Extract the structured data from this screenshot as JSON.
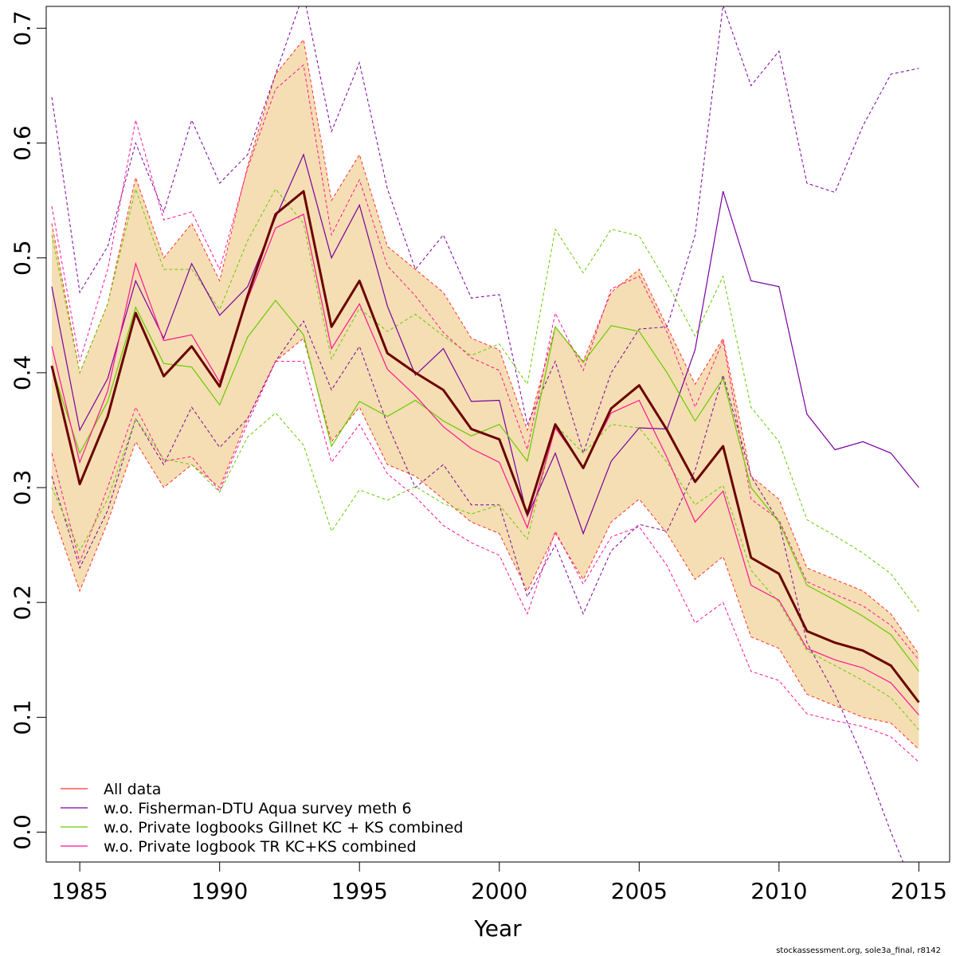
{
  "chart_data": {
    "type": "line",
    "title": "",
    "xlabel": "Year",
    "ylabel": "",
    "xlim": [
      1983.8,
      2016.1
    ],
    "ylim": [
      -0.026,
      0.719
    ],
    "x_ticks": [
      "1985",
      "1990",
      "1995",
      "2000",
      "2005",
      "2010",
      "2015"
    ],
    "y_ticks": [
      "0.0",
      "0.1",
      "0.2",
      "0.3",
      "0.4",
      "0.5",
      "0.6",
      "0.7"
    ],
    "legend_position": "bottom-left",
    "colors": {
      "band": "#f5deb3",
      "main": "#6b0000",
      "all_data": "#ff3030",
      "fisherman": "#7a00a0",
      "gillnet": "#66cc00",
      "tr": "#ff1493"
    },
    "legend": [
      {
        "label": "All data",
        "color": "#ff3030"
      },
      {
        "label": "w.o. Fisherman-DTU Aqua survey meth 6",
        "color": "#7a00a0"
      },
      {
        "label": "w.o. Private logbooks Gillnet KC + KS combined",
        "color": "#66cc00"
      },
      {
        "label": "w.o. Private logbook TR KC+KS combined",
        "color": "#ff1493"
      }
    ],
    "credit": "stockassessment.org, sole3a_final, r8142",
    "x": [
      1984,
      1985,
      1986,
      1987,
      1988,
      1989,
      1990,
      1991,
      1992,
      1993,
      1994,
      1995,
      1996,
      1997,
      1998,
      1999,
      2000,
      2001,
      2002,
      2003,
      2004,
      2005,
      2006,
      2007,
      2008,
      2009,
      2010,
      2011,
      2012,
      2013,
      2014,
      2015
    ],
    "band": {
      "upper": [
        0.53,
        0.4,
        0.46,
        0.57,
        0.5,
        0.53,
        0.48,
        0.58,
        0.66,
        0.69,
        0.55,
        0.59,
        0.51,
        0.49,
        0.47,
        0.43,
        0.42,
        0.35,
        0.44,
        0.41,
        0.47,
        0.49,
        0.44,
        0.39,
        0.43,
        0.31,
        0.29,
        0.23,
        0.22,
        0.21,
        0.19,
        0.155
      ],
      "lower": [
        0.28,
        0.21,
        0.27,
        0.34,
        0.3,
        0.32,
        0.3,
        0.36,
        0.41,
        0.43,
        0.34,
        0.37,
        0.32,
        0.31,
        0.29,
        0.27,
        0.26,
        0.21,
        0.26,
        0.22,
        0.27,
        0.29,
        0.26,
        0.22,
        0.24,
        0.17,
        0.16,
        0.12,
        0.11,
        0.1,
        0.095,
        0.072
      ]
    },
    "series": [
      {
        "name": "All data",
        "key": "all_data",
        "values": [
          0.406,
          0.303,
          0.362,
          0.452,
          0.397,
          0.423,
          0.388,
          0.467,
          0.538,
          0.558,
          0.44,
          0.48,
          0.417,
          0.4,
          0.385,
          0.351,
          0.342,
          0.277,
          0.355,
          0.317,
          0.369,
          0.389,
          0.35,
          0.305,
          0.336,
          0.239,
          0.225,
          0.175,
          0.165,
          0.158,
          0.145,
          0.113
        ]
      },
      {
        "name": "w.o. Fisherman-DTU Aqua survey meth 6",
        "key": "fisherman",
        "values": [
          0.475,
          0.35,
          0.395,
          0.48,
          0.43,
          0.495,
          0.45,
          0.475,
          0.535,
          0.59,
          0.5,
          0.546,
          0.458,
          0.398,
          0.421,
          0.375,
          0.376,
          0.275,
          0.33,
          0.26,
          0.323,
          0.352,
          0.351,
          0.42,
          0.558,
          0.48,
          0.475,
          0.364,
          0.333,
          0.34,
          0.33,
          0.3
        ],
        "upper": [
          0.64,
          0.47,
          0.51,
          0.6,
          0.54,
          0.62,
          0.565,
          0.59,
          0.66,
          0.73,
          0.61,
          0.67,
          0.56,
          0.49,
          0.52,
          0.465,
          0.468,
          0.355,
          0.41,
          0.33,
          0.4,
          0.438,
          0.44,
          0.52,
          0.72,
          0.65,
          0.68,
          0.565,
          0.557,
          0.615,
          0.66,
          0.665
        ],
        "lower": [
          0.31,
          0.23,
          0.28,
          0.36,
          0.32,
          0.37,
          0.335,
          0.36,
          0.41,
          0.445,
          0.385,
          0.423,
          0.355,
          0.3,
          0.32,
          0.285,
          0.285,
          0.205,
          0.25,
          0.19,
          0.245,
          0.268,
          0.262,
          0.315,
          0.398,
          0.31,
          0.27,
          0.165,
          0.12,
          0.065,
          0.0,
          -0.06
        ]
      },
      {
        "name": "w.o. Private logbooks Gillnet KC + KS combined",
        "key": "gillnet",
        "values": [
          0.405,
          0.33,
          0.375,
          0.457,
          0.408,
          0.405,
          0.372,
          0.431,
          0.463,
          0.433,
          0.336,
          0.375,
          0.362,
          0.376,
          0.358,
          0.345,
          0.355,
          0.323,
          0.44,
          0.409,
          0.441,
          0.436,
          0.4,
          0.358,
          0.395,
          0.3,
          0.27,
          0.215,
          0.202,
          0.188,
          0.172,
          0.14
        ],
        "upper": [
          0.52,
          0.4,
          0.46,
          0.56,
          0.49,
          0.49,
          0.455,
          0.515,
          0.56,
          0.53,
          0.412,
          0.456,
          0.436,
          0.451,
          0.432,
          0.415,
          0.425,
          0.39,
          0.525,
          0.487,
          0.525,
          0.519,
          0.478,
          0.432,
          0.484,
          0.37,
          0.34,
          0.272,
          0.258,
          0.243,
          0.225,
          0.192
        ],
        "lower": [
          0.3,
          0.245,
          0.29,
          0.36,
          0.325,
          0.32,
          0.296,
          0.344,
          0.365,
          0.337,
          0.262,
          0.298,
          0.289,
          0.301,
          0.286,
          0.277,
          0.285,
          0.255,
          0.355,
          0.33,
          0.355,
          0.352,
          0.322,
          0.285,
          0.302,
          0.228,
          0.2,
          0.158,
          0.145,
          0.132,
          0.117,
          0.089
        ]
      },
      {
        "name": "w.o. Private logbook TR KC+KS combined",
        "key": "tr",
        "values": [
          0.423,
          0.322,
          0.384,
          0.495,
          0.428,
          0.433,
          0.392,
          0.464,
          0.526,
          0.538,
          0.421,
          0.46,
          0.403,
          0.38,
          0.353,
          0.334,
          0.322,
          0.265,
          0.352,
          0.318,
          0.365,
          0.376,
          0.326,
          0.27,
          0.297,
          0.215,
          0.202,
          0.16,
          0.15,
          0.143,
          0.13,
          0.102
        ],
        "upper": [
          0.545,
          0.41,
          0.49,
          0.62,
          0.533,
          0.54,
          0.49,
          0.578,
          0.647,
          0.668,
          0.52,
          0.568,
          0.493,
          0.467,
          0.435,
          0.413,
          0.402,
          0.333,
          0.452,
          0.402,
          0.473,
          0.484,
          0.435,
          0.37,
          0.428,
          0.29,
          0.272,
          0.218,
          0.207,
          0.197,
          0.18,
          0.15
        ],
        "lower": [
          0.33,
          0.235,
          0.3,
          0.37,
          0.323,
          0.327,
          0.297,
          0.356,
          0.41,
          0.41,
          0.322,
          0.355,
          0.312,
          0.292,
          0.267,
          0.252,
          0.241,
          0.19,
          0.262,
          0.216,
          0.257,
          0.266,
          0.232,
          0.182,
          0.2,
          0.14,
          0.132,
          0.103,
          0.097,
          0.092,
          0.083,
          0.061
        ]
      }
    ]
  }
}
